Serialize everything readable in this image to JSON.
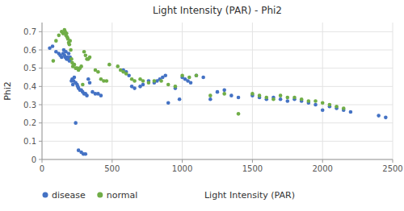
{
  "chart_data": {
    "type": "scatter",
    "title": "Light Intensity (PAR) - Phi2",
    "xlabel": "Light Intensity (PAR)",
    "ylabel": "Phi2",
    "xlim": [
      0,
      2500
    ],
    "ylim": [
      0,
      0.75
    ],
    "xticks": [
      0,
      500,
      1000,
      1500,
      2000,
      2500
    ],
    "yticks": [
      0,
      0.1,
      0.2,
      0.3,
      0.4,
      0.5,
      0.6,
      0.7
    ],
    "grid": true,
    "legend": "bottom",
    "series": [
      {
        "name": "disease",
        "color": "#4472C4",
        "x": [
          55,
          75,
          100,
          120,
          130,
          140,
          150,
          155,
          160,
          165,
          170,
          175,
          180,
          185,
          190,
          195,
          200,
          205,
          210,
          215,
          220,
          225,
          230,
          240,
          250,
          255,
          260,
          270,
          280,
          290,
          300,
          310,
          320,
          330,
          340,
          360,
          380,
          400,
          420,
          240,
          260,
          280,
          295,
          310,
          580,
          600,
          620,
          640,
          660,
          700,
          720,
          760,
          800,
          820,
          840,
          860,
          880,
          900,
          950,
          980,
          1000,
          1020,
          1040,
          1060,
          1100,
          1150,
          1200,
          1250,
          1300,
          1350,
          1400,
          1500,
          1550,
          1600,
          1650,
          1700,
          1750,
          1800,
          1850,
          1900,
          1950,
          2000,
          2050,
          2100,
          2150,
          2200,
          2400,
          2450
        ],
        "values": [
          0.61,
          0.62,
          0.59,
          0.58,
          0.57,
          0.56,
          0.58,
          0.6,
          0.57,
          0.56,
          0.59,
          0.55,
          0.56,
          0.55,
          0.58,
          0.54,
          0.56,
          0.55,
          0.43,
          0.44,
          0.41,
          0.43,
          0.45,
          0.42,
          0.41,
          0.4,
          0.39,
          0.38,
          0.38,
          0.37,
          0.36,
          0.36,
          0.35,
          0.44,
          0.42,
          0.37,
          0.36,
          0.36,
          0.35,
          0.2,
          0.05,
          0.04,
          0.03,
          0.03,
          0.49,
          0.48,
          0.46,
          0.4,
          0.39,
          0.4,
          0.41,
          0.43,
          0.42,
          0.43,
          0.44,
          0.45,
          0.46,
          0.31,
          0.39,
          0.33,
          0.45,
          0.44,
          0.43,
          0.42,
          0.46,
          0.45,
          0.33,
          0.37,
          0.38,
          0.35,
          0.34,
          0.35,
          0.34,
          0.33,
          0.34,
          0.33,
          0.32,
          0.33,
          0.32,
          0.31,
          0.3,
          0.27,
          0.29,
          0.28,
          0.27,
          0.26,
          0.24,
          0.23
        ]
      },
      {
        "name": "normal",
        "color": "#70AD47",
        "x": [
          80,
          100,
          120,
          140,
          150,
          160,
          165,
          170,
          175,
          180,
          185,
          190,
          195,
          200,
          205,
          210,
          215,
          220,
          230,
          240,
          250,
          260,
          270,
          280,
          290,
          300,
          310,
          320,
          330,
          340,
          380,
          400,
          420,
          440,
          460,
          480,
          540,
          560,
          580,
          600,
          640,
          660,
          700,
          720,
          760,
          800,
          850,
          900,
          950,
          1000,
          1050,
          1100,
          1200,
          1300,
          1400,
          1500,
          1550,
          1600,
          1650,
          1700,
          1750,
          1800,
          1850,
          1900,
          1950,
          2000,
          2050,
          2100,
          2150
        ],
        "values": [
          0.54,
          0.65,
          0.68,
          0.7,
          0.69,
          0.71,
          0.7,
          0.68,
          0.69,
          0.67,
          0.66,
          0.64,
          0.63,
          0.65,
          0.6,
          0.55,
          0.53,
          0.51,
          0.52,
          0.5,
          0.5,
          0.49,
          0.5,
          0.51,
          0.41,
          0.59,
          0.57,
          0.55,
          0.55,
          0.56,
          0.49,
          0.48,
          0.44,
          0.43,
          0.43,
          0.52,
          0.51,
          0.49,
          0.48,
          0.47,
          0.44,
          0.43,
          0.44,
          0.43,
          0.42,
          0.43,
          0.43,
          0.41,
          0.4,
          0.46,
          0.45,
          0.46,
          0.35,
          0.36,
          0.25,
          0.36,
          0.35,
          0.34,
          0.33,
          0.35,
          0.34,
          0.34,
          0.33,
          0.32,
          0.32,
          0.31,
          0.3,
          0.29,
          0.28
        ]
      }
    ]
  }
}
